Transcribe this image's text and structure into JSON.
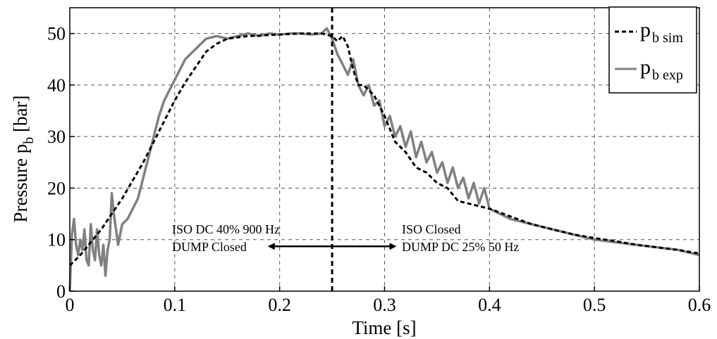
{
  "chart_data": {
    "type": "line",
    "title": "",
    "xlabel": "Time [s]",
    "ylabel_main": "Pressure p",
    "ylabel_sub": "b",
    "ylabel_unit": " [bar]",
    "xlim": [
      0,
      0.6
    ],
    "ylim": [
      0,
      55
    ],
    "xticks": [
      0,
      0.1,
      0.2,
      0.3,
      0.4,
      0.5,
      0.6
    ],
    "xtick_labels": [
      "0",
      "0.1",
      "0.2",
      "0.3",
      "0.4",
      "0.5",
      "0.6"
    ],
    "yticks": [
      0,
      10,
      20,
      30,
      40,
      50
    ],
    "ytick_labels": [
      "0",
      "10",
      "20",
      "30",
      "40",
      "50"
    ],
    "grid": true,
    "legend_position": "top-right",
    "vertical_line_x": 0.25,
    "series": [
      {
        "name_main": "p",
        "name_sub": "b sim",
        "color": "#000000",
        "style": "dashed",
        "x": [
          0,
          0.01,
          0.02,
          0.03,
          0.04,
          0.05,
          0.06,
          0.07,
          0.08,
          0.09,
          0.1,
          0.11,
          0.12,
          0.13,
          0.14,
          0.15,
          0.17,
          0.2,
          0.22,
          0.24,
          0.25,
          0.255,
          0.26,
          0.265,
          0.27,
          0.275,
          0.28,
          0.29,
          0.3,
          0.31,
          0.32,
          0.33,
          0.34,
          0.35,
          0.36,
          0.37,
          0.38,
          0.39,
          0.4,
          0.42,
          0.44,
          0.46,
          0.48,
          0.5,
          0.52,
          0.54,
          0.56,
          0.58,
          0.6
        ],
        "y": [
          5,
          7,
          9.5,
          12,
          15,
          18,
          21.5,
          25,
          29,
          33,
          37,
          40.5,
          43.5,
          46.5,
          48,
          49,
          49.5,
          49.8,
          50,
          50,
          49.5,
          48.5,
          49.5,
          47.5,
          43,
          40,
          40,
          38,
          34,
          29,
          27,
          24,
          23,
          21,
          20,
          17.5,
          17,
          16.5,
          16,
          14.5,
          13,
          12,
          11,
          10.3,
          9.7,
          9,
          8.5,
          8,
          7.3
        ]
      },
      {
        "name_main": "p",
        "name_sub": "b exp",
        "color": "#808080",
        "style": "solid",
        "x": [
          0,
          0.002,
          0.004,
          0.006,
          0.008,
          0.01,
          0.012,
          0.014,
          0.016,
          0.018,
          0.02,
          0.022,
          0.024,
          0.026,
          0.028,
          0.03,
          0.032,
          0.034,
          0.036,
          0.038,
          0.04,
          0.042,
          0.044,
          0.046,
          0.048,
          0.05,
          0.055,
          0.06,
          0.065,
          0.07,
          0.075,
          0.08,
          0.085,
          0.09,
          0.095,
          0.1,
          0.105,
          0.11,
          0.115,
          0.12,
          0.125,
          0.13,
          0.14,
          0.15,
          0.16,
          0.17,
          0.18,
          0.19,
          0.2,
          0.21,
          0.22,
          0.23,
          0.24,
          0.245,
          0.25,
          0.255,
          0.26,
          0.265,
          0.27,
          0.275,
          0.28,
          0.285,
          0.29,
          0.295,
          0.3,
          0.305,
          0.31,
          0.315,
          0.32,
          0.325,
          0.33,
          0.335,
          0.34,
          0.345,
          0.35,
          0.355,
          0.36,
          0.365,
          0.37,
          0.375,
          0.38,
          0.385,
          0.39,
          0.395,
          0.4,
          0.41,
          0.42,
          0.43,
          0.44,
          0.45,
          0.46,
          0.47,
          0.48,
          0.49,
          0.5,
          0.52,
          0.54,
          0.56,
          0.58,
          0.6
        ],
        "y": [
          0,
          11,
          14,
          9,
          7,
          10,
          8,
          12,
          6,
          5,
          13,
          8,
          6,
          12,
          7,
          5,
          9,
          3,
          8,
          10,
          19,
          15,
          12,
          9,
          11,
          13,
          14,
          16,
          18,
          22,
          26,
          30,
          34,
          37,
          39,
          41,
          43,
          45,
          46,
          47,
          48,
          49,
          49.5,
          49,
          49.5,
          50,
          49.5,
          50,
          49.8,
          50,
          50,
          49.8,
          50,
          51,
          49,
          46,
          44,
          42,
          45,
          40,
          38,
          40,
          36,
          37,
          32,
          34,
          30,
          32,
          28,
          31,
          26,
          29,
          25,
          27,
          23,
          25,
          21,
          24,
          20,
          22,
          18,
          21,
          17,
          20,
          16,
          15,
          14,
          13.5,
          13,
          12.5,
          12,
          11.5,
          11,
          10.5,
          10,
          9.5,
          9,
          8.5,
          8,
          7
        ]
      }
    ],
    "annotations": [
      {
        "lines": [
          "ISO DC 40% 900 Hz",
          "DUMP Closed"
        ]
      },
      {
        "lines": [
          "ISO Closed",
          "DUMP DC 25% 50 Hz"
        ]
      }
    ],
    "arrow": {
      "from_x": 0.19,
      "to_x": 0.31,
      "y": 8.7
    }
  }
}
